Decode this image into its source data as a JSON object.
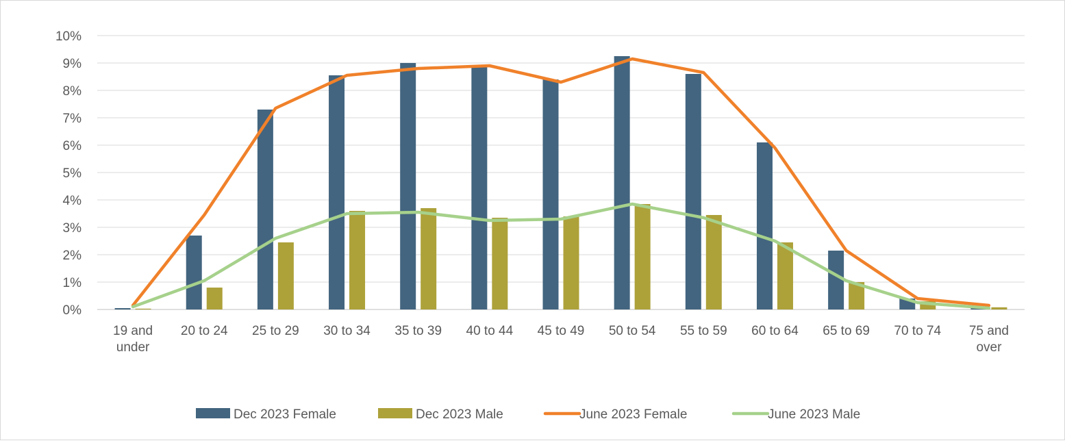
{
  "chart_data": {
    "type": "bar",
    "categories": [
      [
        "19 and",
        "under"
      ],
      [
        "20 to 24"
      ],
      [
        "25 to 29"
      ],
      [
        "30 to 34"
      ],
      [
        "35 to 39"
      ],
      [
        "40 to 44"
      ],
      [
        "45 to 49"
      ],
      [
        "50 to 54"
      ],
      [
        "55 to 59"
      ],
      [
        "60 to 64"
      ],
      [
        "65 to 69"
      ],
      [
        "70 to 74"
      ],
      [
        "75 and",
        "over"
      ]
    ],
    "y_ticks": [
      "0%",
      "1%",
      "2%",
      "3%",
      "4%",
      "5%",
      "6%",
      "7%",
      "8%",
      "9%",
      "10%"
    ],
    "ylim": [
      0,
      10
    ],
    "grid": true,
    "legend_position": "bottom",
    "series": [
      {
        "name": "Dec 2023 Female",
        "kind": "bar",
        "color": "#43657f",
        "values": [
          0.05,
          2.7,
          7.3,
          8.55,
          9.0,
          8.85,
          8.4,
          9.25,
          8.6,
          6.1,
          2.15,
          0.4,
          0.1
        ]
      },
      {
        "name": "Dec 2023 Male",
        "kind": "bar",
        "color": "#ada13a",
        "values": [
          0.03,
          0.8,
          2.45,
          3.6,
          3.7,
          3.35,
          3.4,
          3.85,
          3.45,
          2.45,
          1.0,
          0.3,
          0.08
        ]
      },
      {
        "name": "June 2023 Female",
        "kind": "line",
        "color": "#f0812a",
        "values": [
          0.15,
          3.45,
          7.35,
          8.55,
          8.8,
          8.9,
          8.3,
          9.15,
          8.65,
          5.9,
          2.15,
          0.4,
          0.15
        ]
      },
      {
        "name": "June 2023 Male",
        "kind": "line",
        "color": "#a6d18b",
        "values": [
          0.1,
          1.05,
          2.6,
          3.5,
          3.55,
          3.25,
          3.3,
          3.85,
          3.35,
          2.5,
          1.05,
          0.25,
          0.05
        ]
      }
    ]
  }
}
